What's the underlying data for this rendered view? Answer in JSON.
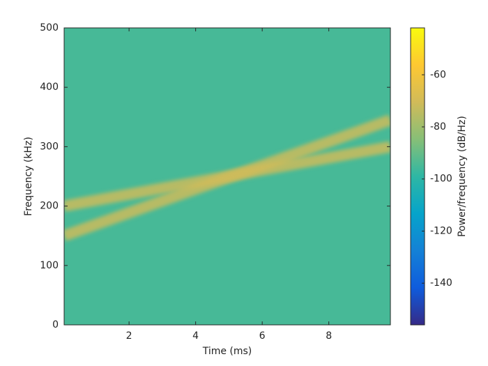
{
  "chart_data": {
    "type": "spectrogram",
    "x_label": "Time (ms)",
    "y_label": "Frequency (kHz)",
    "colorbar_label": "Power/frequency (dB/Hz)",
    "xlim": [
      0.05,
      9.85
    ],
    "xticks": [
      2,
      4,
      6,
      8
    ],
    "ylim": [
      0,
      500
    ],
    "yticks": [
      0,
      100,
      200,
      300,
      400,
      500
    ],
    "clim": [
      -156,
      -42
    ],
    "cticks": [
      -140,
      -120,
      -100,
      -80,
      -60
    ],
    "colormap": [
      "#352a87",
      "#0f5cdd",
      "#1481d6",
      "#06a4ca",
      "#2eb7a4",
      "#87bf77",
      "#d1bb59",
      "#fec832",
      "#f9fb0e"
    ],
    "background_level": -95,
    "series": [
      {
        "x": [
          0.05,
          9.85
        ],
        "values": [
          200,
          300
        ],
        "level": -70
      },
      {
        "x": [
          0.05,
          9.85
        ],
        "values": [
          150,
          345
        ],
        "level": -70
      }
    ]
  }
}
